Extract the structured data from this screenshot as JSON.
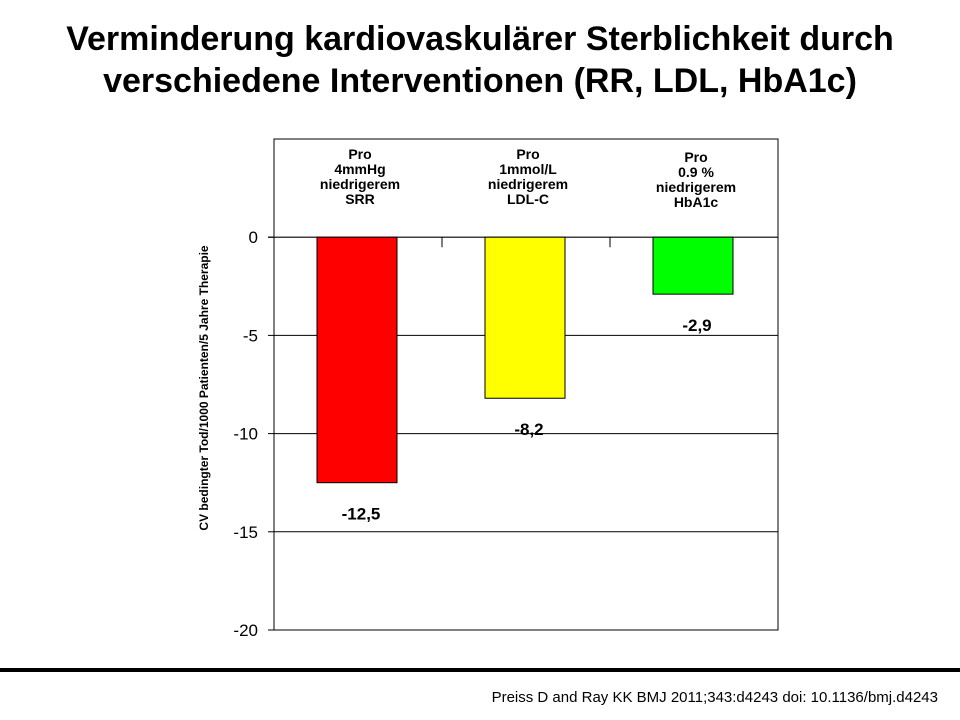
{
  "title": {
    "line1": "Verminderung kardiovaskulärer Sterblichkeit durch",
    "line2": "verschiedene Interventionen (RR, LDL, HbA1c)"
  },
  "citation": "Preiss D and Ray KK BMJ 2011;343:d4243 doi: 10.1136/bmj.d4243",
  "chart_data": {
    "type": "bar",
    "ylabel": "CV bedingter Tod/1000 Patienten/5 Jahre Therapie",
    "ylim": [
      -20,
      5
    ],
    "yticks": [
      0,
      -5,
      -10,
      -15,
      -20
    ],
    "ytick_labels": [
      "0",
      "-5",
      "-10",
      "-15",
      "-20"
    ],
    "grid": true,
    "categories": [
      [
        "Pro",
        "4mmHg",
        "niedrigerem",
        "SRR"
      ],
      [
        "Pro",
        "1mmol/L",
        "niedrigerem",
        "LDL-C"
      ],
      [
        "Pro",
        "0.9 %",
        "niedrigerem",
        "HbA1c"
      ]
    ],
    "values": [
      -12.5,
      -8.2,
      -2.9
    ],
    "value_labels": [
      "-12,5",
      "-8,2",
      "-2,9"
    ],
    "colors": [
      "#ff0000",
      "#ffff00",
      "#00ff00"
    ]
  }
}
